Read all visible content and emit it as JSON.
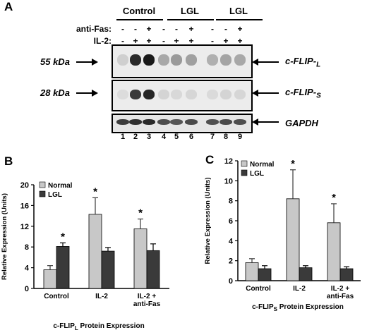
{
  "panel_a": {
    "letter": "A",
    "groups": [
      "Control",
      "LGL",
      "LGL"
    ],
    "row_labels": {
      "anti_fas": "anti-Fas:",
      "il2": "IL-2:"
    },
    "anti_fas_signs": [
      "-",
      "-",
      "+",
      "-",
      "-",
      "+",
      "-",
      "-",
      "+"
    ],
    "il2_signs": [
      "-",
      "+",
      "+",
      "-",
      "+",
      "+",
      "-",
      "+",
      "+"
    ],
    "mw_labels": {
      "large": "55 kDa",
      "small": "28 kDa"
    },
    "proteins": {
      "flip_l": {
        "main": "c-FLIP",
        "sub": "L"
      },
      "flip_s": {
        "main": "c-FLIP",
        "sub": "S"
      },
      "gapdh": "GAPDH"
    },
    "lanes": [
      "1",
      "2",
      "3",
      "4",
      "5",
      "6",
      "7",
      "8",
      "9"
    ]
  },
  "chart_data": [
    {
      "panel": "B",
      "type": "bar",
      "categories": [
        "Control",
        "IL-2",
        "IL-2 + anti-Fas"
      ],
      "category_lines": [
        [
          "Control"
        ],
        [
          "IL-2"
        ],
        [
          "IL-2 +",
          "anti-Fas"
        ]
      ],
      "series": [
        {
          "name": "Normal",
          "values": [
            3.6,
            14.3,
            11.5
          ],
          "errors": [
            0.8,
            3.2,
            1.9
          ],
          "color": "#c8c8c8"
        },
        {
          "name": "LGL",
          "values": [
            8.1,
            7.2,
            7.3
          ],
          "errors": [
            0.7,
            0.7,
            1.3
          ],
          "color": "#3a3a3a"
        }
      ],
      "significance": [
        {
          "category": 0,
          "series": 1,
          "mark": "*"
        },
        {
          "category": 1,
          "series": 0,
          "mark": "*"
        },
        {
          "category": 2,
          "series": 0,
          "mark": "*"
        }
      ],
      "ylabel": "Relative Expression (Units)",
      "xlabel": {
        "main": "c-FLIP",
        "sub": "L",
        "rest": " Protein Expression"
      },
      "ylim": [
        0,
        20
      ],
      "yticks": [
        0,
        4,
        8,
        12,
        16,
        20
      ],
      "legend_position": "top-left",
      "grid": false
    },
    {
      "panel": "C",
      "type": "bar",
      "categories": [
        "Control",
        "IL-2",
        "IL-2 + anti-Fas"
      ],
      "category_lines": [
        [
          "Control"
        ],
        [
          "IL-2"
        ],
        [
          "IL-2 +",
          "anti-Fas"
        ]
      ],
      "series": [
        {
          "name": "Normal",
          "values": [
            1.8,
            8.2,
            5.8
          ],
          "errors": [
            0.4,
            2.9,
            1.9
          ],
          "color": "#c8c8c8"
        },
        {
          "name": "LGL",
          "values": [
            1.2,
            1.3,
            1.2
          ],
          "errors": [
            0.3,
            0.2,
            0.2
          ],
          "color": "#3a3a3a"
        }
      ],
      "significance": [
        {
          "category": 1,
          "series": 0,
          "mark": "*"
        },
        {
          "category": 2,
          "series": 0,
          "mark": "*"
        }
      ],
      "ylabel": "Relative Expression (Units)",
      "xlabel": {
        "main": "c-FLIP",
        "sub": "S",
        "rest": " Protein Expression"
      },
      "ylim": [
        0,
        12
      ],
      "yticks": [
        0,
        2,
        4,
        6,
        8,
        10,
        12
      ],
      "legend_position": "top-left",
      "grid": false
    }
  ]
}
